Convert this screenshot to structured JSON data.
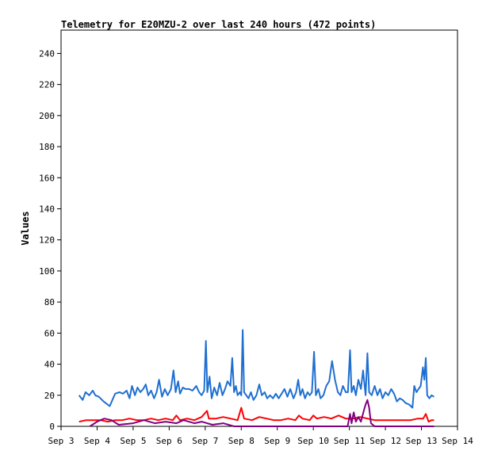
{
  "chart_data": {
    "type": "line",
    "title": "Telemetry for E20MZU-2 over last 240 hours (472 points)",
    "xlabel": "",
    "ylabel": "Values",
    "xlim": [
      0,
      11
    ],
    "ylim": [
      0,
      255
    ],
    "grid": false,
    "legend": "none",
    "x_ticks": [
      {
        "x": 0,
        "label": "Sep 3"
      },
      {
        "x": 1,
        "label": "Sep 4"
      },
      {
        "x": 2,
        "label": "Sep 5"
      },
      {
        "x": 3,
        "label": "Sep 6"
      },
      {
        "x": 4,
        "label": "Sep 7"
      },
      {
        "x": 5,
        "label": "Sep 8"
      },
      {
        "x": 6,
        "label": "Sep 9"
      },
      {
        "x": 7,
        "label": "Sep 10"
      },
      {
        "x": 8,
        "label": "Sep 11"
      },
      {
        "x": 9,
        "label": "Sep 12"
      },
      {
        "x": 10,
        "label": "Sep 13"
      },
      {
        "x": 11,
        "label": "Sep 14"
      }
    ],
    "y_ticks": [
      0,
      20,
      40,
      60,
      80,
      100,
      120,
      140,
      160,
      180,
      200,
      220,
      240
    ],
    "series": [
      {
        "color": "#1f6fd1",
        "points": [
          [
            0.5,
            20
          ],
          [
            0.6,
            17
          ],
          [
            0.68,
            22
          ],
          [
            0.78,
            20
          ],
          [
            0.88,
            23
          ],
          [
            0.95,
            20
          ],
          [
            1.05,
            19
          ],
          [
            1.18,
            16
          ],
          [
            1.35,
            13
          ],
          [
            1.5,
            21
          ],
          [
            1.62,
            22
          ],
          [
            1.72,
            21
          ],
          [
            1.82,
            23
          ],
          [
            1.9,
            18
          ],
          [
            1.97,
            26
          ],
          [
            2.05,
            20
          ],
          [
            2.12,
            25
          ],
          [
            2.2,
            22
          ],
          [
            2.28,
            24
          ],
          [
            2.35,
            27
          ],
          [
            2.42,
            20
          ],
          [
            2.5,
            23
          ],
          [
            2.58,
            18
          ],
          [
            2.65,
            22
          ],
          [
            2.72,
            30
          ],
          [
            2.8,
            19
          ],
          [
            2.88,
            24
          ],
          [
            2.96,
            20
          ],
          [
            3.05,
            24
          ],
          [
            3.12,
            36
          ],
          [
            3.18,
            22
          ],
          [
            3.25,
            29
          ],
          [
            3.3,
            21
          ],
          [
            3.38,
            25
          ],
          [
            3.45,
            24
          ],
          [
            3.55,
            24
          ],
          [
            3.65,
            23
          ],
          [
            3.75,
            26
          ],
          [
            3.83,
            22
          ],
          [
            3.9,
            20
          ],
          [
            3.97,
            23
          ],
          [
            4.02,
            55
          ],
          [
            4.06,
            22
          ],
          [
            4.12,
            32
          ],
          [
            4.18,
            18
          ],
          [
            4.25,
            25
          ],
          [
            4.33,
            20
          ],
          [
            4.4,
            28
          ],
          [
            4.48,
            20
          ],
          [
            4.55,
            24
          ],
          [
            4.62,
            29
          ],
          [
            4.7,
            26
          ],
          [
            4.75,
            44
          ],
          [
            4.8,
            22
          ],
          [
            4.85,
            26
          ],
          [
            4.9,
            20
          ],
          [
            4.96,
            22
          ],
          [
            5.0,
            20
          ],
          [
            5.04,
            62
          ],
          [
            5.08,
            22
          ],
          [
            5.14,
            20
          ],
          [
            5.2,
            18
          ],
          [
            5.27,
            22
          ],
          [
            5.34,
            17
          ],
          [
            5.42,
            20
          ],
          [
            5.5,
            27
          ],
          [
            5.57,
            20
          ],
          [
            5.65,
            22
          ],
          [
            5.72,
            18
          ],
          [
            5.8,
            20
          ],
          [
            5.88,
            18
          ],
          [
            5.96,
            21
          ],
          [
            6.04,
            18
          ],
          [
            6.12,
            21
          ],
          [
            6.2,
            24
          ],
          [
            6.28,
            19
          ],
          [
            6.36,
            24
          ],
          [
            6.45,
            18
          ],
          [
            6.52,
            22
          ],
          [
            6.58,
            30
          ],
          [
            6.64,
            20
          ],
          [
            6.7,
            24
          ],
          [
            6.77,
            18
          ],
          [
            6.84,
            22
          ],
          [
            6.9,
            20
          ],
          [
            6.96,
            22
          ],
          [
            7.02,
            48
          ],
          [
            7.07,
            20
          ],
          [
            7.14,
            24
          ],
          [
            7.2,
            18
          ],
          [
            7.28,
            20
          ],
          [
            7.36,
            26
          ],
          [
            7.44,
            29
          ],
          [
            7.52,
            42
          ],
          [
            7.6,
            30
          ],
          [
            7.68,
            22
          ],
          [
            7.75,
            20
          ],
          [
            7.82,
            26
          ],
          [
            7.9,
            22
          ],
          [
            7.96,
            22
          ],
          [
            8.02,
            49
          ],
          [
            8.06,
            22
          ],
          [
            8.12,
            26
          ],
          [
            8.18,
            20
          ],
          [
            8.25,
            30
          ],
          [
            8.32,
            24
          ],
          [
            8.38,
            36
          ],
          [
            8.45,
            20
          ],
          [
            8.5,
            47
          ],
          [
            8.55,
            22
          ],
          [
            8.62,
            20
          ],
          [
            8.7,
            26
          ],
          [
            8.78,
            20
          ],
          [
            8.85,
            24
          ],
          [
            8.92,
            18
          ],
          [
            9.0,
            22
          ],
          [
            9.08,
            20
          ],
          [
            9.16,
            24
          ],
          [
            9.24,
            21
          ],
          [
            9.32,
            16
          ],
          [
            9.4,
            18
          ],
          [
            9.48,
            17
          ],
          [
            9.56,
            15
          ],
          [
            9.66,
            14
          ],
          [
            9.75,
            12
          ],
          [
            9.8,
            26
          ],
          [
            9.86,
            22
          ],
          [
            9.92,
            24
          ],
          [
            9.98,
            26
          ],
          [
            10.04,
            38
          ],
          [
            10.08,
            30
          ],
          [
            10.12,
            44
          ],
          [
            10.16,
            20
          ],
          [
            10.22,
            18
          ],
          [
            10.28,
            20
          ],
          [
            10.35,
            19
          ]
        ]
      },
      {
        "color": "#ff0000",
        "points": [
          [
            0.5,
            3
          ],
          [
            0.7,
            4
          ],
          [
            0.9,
            4
          ],
          [
            1.1,
            4
          ],
          [
            1.3,
            3
          ],
          [
            1.5,
            4
          ],
          [
            1.7,
            4
          ],
          [
            1.9,
            5
          ],
          [
            2.1,
            4
          ],
          [
            2.3,
            4
          ],
          [
            2.5,
            5
          ],
          [
            2.7,
            4
          ],
          [
            2.9,
            5
          ],
          [
            3.1,
            4
          ],
          [
            3.2,
            7
          ],
          [
            3.3,
            4
          ],
          [
            3.5,
            5
          ],
          [
            3.7,
            4
          ],
          [
            3.9,
            6
          ],
          [
            4.05,
            10
          ],
          [
            4.1,
            5
          ],
          [
            4.3,
            5
          ],
          [
            4.5,
            6
          ],
          [
            4.7,
            5
          ],
          [
            4.9,
            4
          ],
          [
            5.0,
            12
          ],
          [
            5.08,
            5
          ],
          [
            5.3,
            4
          ],
          [
            5.5,
            6
          ],
          [
            5.7,
            5
          ],
          [
            5.9,
            4
          ],
          [
            6.1,
            4
          ],
          [
            6.3,
            5
          ],
          [
            6.5,
            4
          ],
          [
            6.6,
            7
          ],
          [
            6.7,
            5
          ],
          [
            6.9,
            4
          ],
          [
            7.0,
            7
          ],
          [
            7.1,
            5
          ],
          [
            7.3,
            6
          ],
          [
            7.5,
            5
          ],
          [
            7.7,
            7
          ],
          [
            7.9,
            5
          ],
          [
            8.1,
            5
          ],
          [
            8.3,
            6
          ],
          [
            8.5,
            5
          ],
          [
            8.7,
            4
          ],
          [
            8.9,
            4
          ],
          [
            9.1,
            4
          ],
          [
            9.3,
            4
          ],
          [
            9.5,
            4
          ],
          [
            9.7,
            4
          ],
          [
            9.9,
            5
          ],
          [
            10.05,
            5
          ],
          [
            10.12,
            8
          ],
          [
            10.2,
            3
          ],
          [
            10.28,
            4
          ],
          [
            10.35,
            4
          ]
        ]
      },
      {
        "color": "#800080",
        "points": [
          [
            0.8,
            0
          ],
          [
            1.0,
            3
          ],
          [
            1.2,
            5
          ],
          [
            1.4,
            4
          ],
          [
            1.6,
            1
          ],
          [
            2.0,
            2
          ],
          [
            2.3,
            4
          ],
          [
            2.6,
            2
          ],
          [
            2.9,
            3
          ],
          [
            3.2,
            2
          ],
          [
            3.4,
            4
          ],
          [
            3.7,
            2
          ],
          [
            3.9,
            3
          ],
          [
            4.2,
            1
          ],
          [
            4.5,
            2
          ],
          [
            4.8,
            0
          ],
          [
            5.2,
            0
          ],
          [
            6.0,
            0
          ],
          [
            7.0,
            0
          ],
          [
            7.95,
            0
          ],
          [
            8.02,
            8
          ],
          [
            8.06,
            2
          ],
          [
            8.12,
            9
          ],
          [
            8.18,
            3
          ],
          [
            8.25,
            6
          ],
          [
            8.32,
            3
          ],
          [
            8.4,
            10
          ],
          [
            8.45,
            14
          ],
          [
            8.5,
            17
          ],
          [
            8.55,
            12
          ],
          [
            8.6,
            2
          ],
          [
            8.7,
            0
          ],
          [
            9.0,
            0
          ],
          [
            9.5,
            0
          ],
          [
            10.0,
            0
          ],
          [
            10.35,
            0
          ]
        ]
      }
    ]
  }
}
